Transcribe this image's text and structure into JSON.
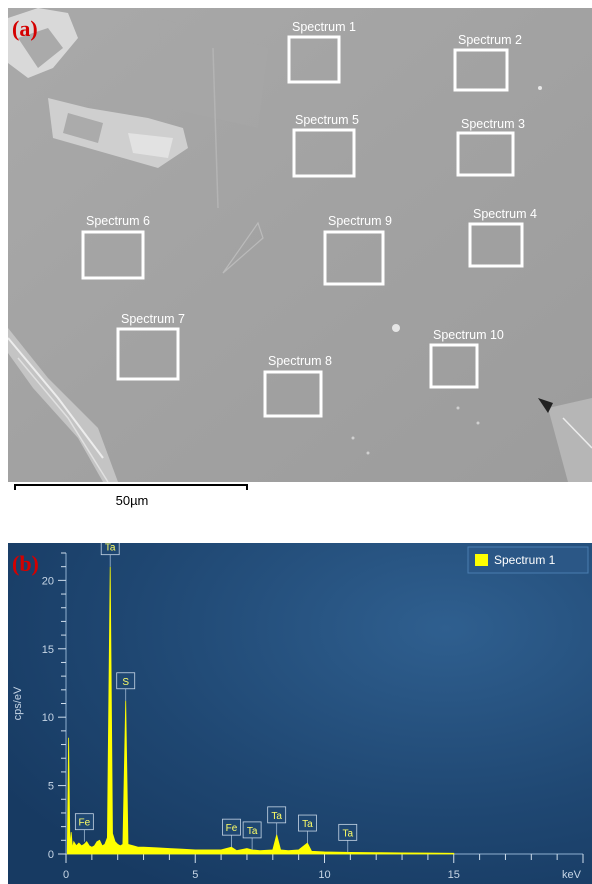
{
  "panel_a": {
    "letter": "(a)",
    "spectrum_labels": [
      "Spectrum 1",
      "Spectrum 2",
      "Spectrum 3",
      "Spectrum 4",
      "Spectrum 5",
      "Spectrum 6",
      "Spectrum 7",
      "Spectrum 8",
      "Spectrum 9",
      "Spectrum 10"
    ],
    "scale_bar_label": "50µm"
  },
  "panel_b": {
    "letter": "(b)"
  },
  "chart_data": {
    "type": "line",
    "title": "",
    "xlabel": "keV",
    "ylabel": "cps/eV",
    "xlim": [
      0,
      20
    ],
    "ylim": [
      0,
      22
    ],
    "x_ticks": [
      0,
      5,
      10,
      15
    ],
    "y_ticks": [
      0,
      5,
      10,
      15,
      20
    ],
    "legend": {
      "placement": "top-right",
      "entries": [
        "Spectrum 1"
      ]
    },
    "series": [
      {
        "name": "Spectrum 1",
        "color": "#ffff00",
        "x": [
          0.05,
          0.1,
          0.15,
          0.2,
          0.25,
          0.3,
          0.4,
          0.5,
          0.6,
          0.7,
          0.8,
          0.9,
          1.0,
          1.1,
          1.2,
          1.3,
          1.4,
          1.5,
          1.6,
          1.71,
          1.8,
          1.9,
          2.0,
          2.1,
          2.2,
          2.31,
          2.4,
          2.6,
          2.8,
          3.0,
          3.5,
          4.0,
          4.5,
          5.0,
          5.5,
          6.0,
          6.4,
          6.6,
          7.0,
          7.2,
          7.5,
          8.0,
          8.15,
          8.3,
          8.6,
          9.0,
          9.34,
          9.5,
          10.0,
          11.0,
          12.0,
          13.0,
          14.0,
          15.0
        ],
        "y": [
          0.1,
          8.5,
          0.5,
          1.6,
          0.4,
          0.9,
          0.6,
          0.8,
          0.6,
          0.7,
          0.9,
          0.6,
          0.5,
          0.6,
          0.9,
          1.0,
          0.6,
          0.7,
          1.2,
          21.0,
          1.5,
          0.9,
          0.7,
          0.6,
          0.7,
          11.2,
          0.7,
          0.6,
          0.5,
          0.5,
          0.45,
          0.4,
          0.35,
          0.3,
          0.3,
          0.3,
          0.5,
          0.25,
          0.4,
          0.3,
          0.25,
          0.3,
          1.4,
          0.3,
          0.25,
          0.3,
          0.8,
          0.2,
          0.15,
          0.12,
          0.1,
          0.08,
          0.07,
          0.05
        ]
      }
    ],
    "peak_labels": [
      {
        "text": "Ta",
        "x": 1.71,
        "y": 21.0
      },
      {
        "text": "S",
        "x": 2.31,
        "y": 11.2
      },
      {
        "text": "Fe",
        "x": 0.71,
        "y": 0.9
      },
      {
        "text": "Fe",
        "x": 6.4,
        "y": 0.5
      },
      {
        "text": "Ta",
        "x": 7.2,
        "y": 0.3
      },
      {
        "text": "Ta",
        "x": 8.15,
        "y": 1.4
      },
      {
        "text": "Ta",
        "x": 9.34,
        "y": 0.8
      },
      {
        "text": "Ta",
        "x": 10.9,
        "y": 0.12
      }
    ]
  }
}
